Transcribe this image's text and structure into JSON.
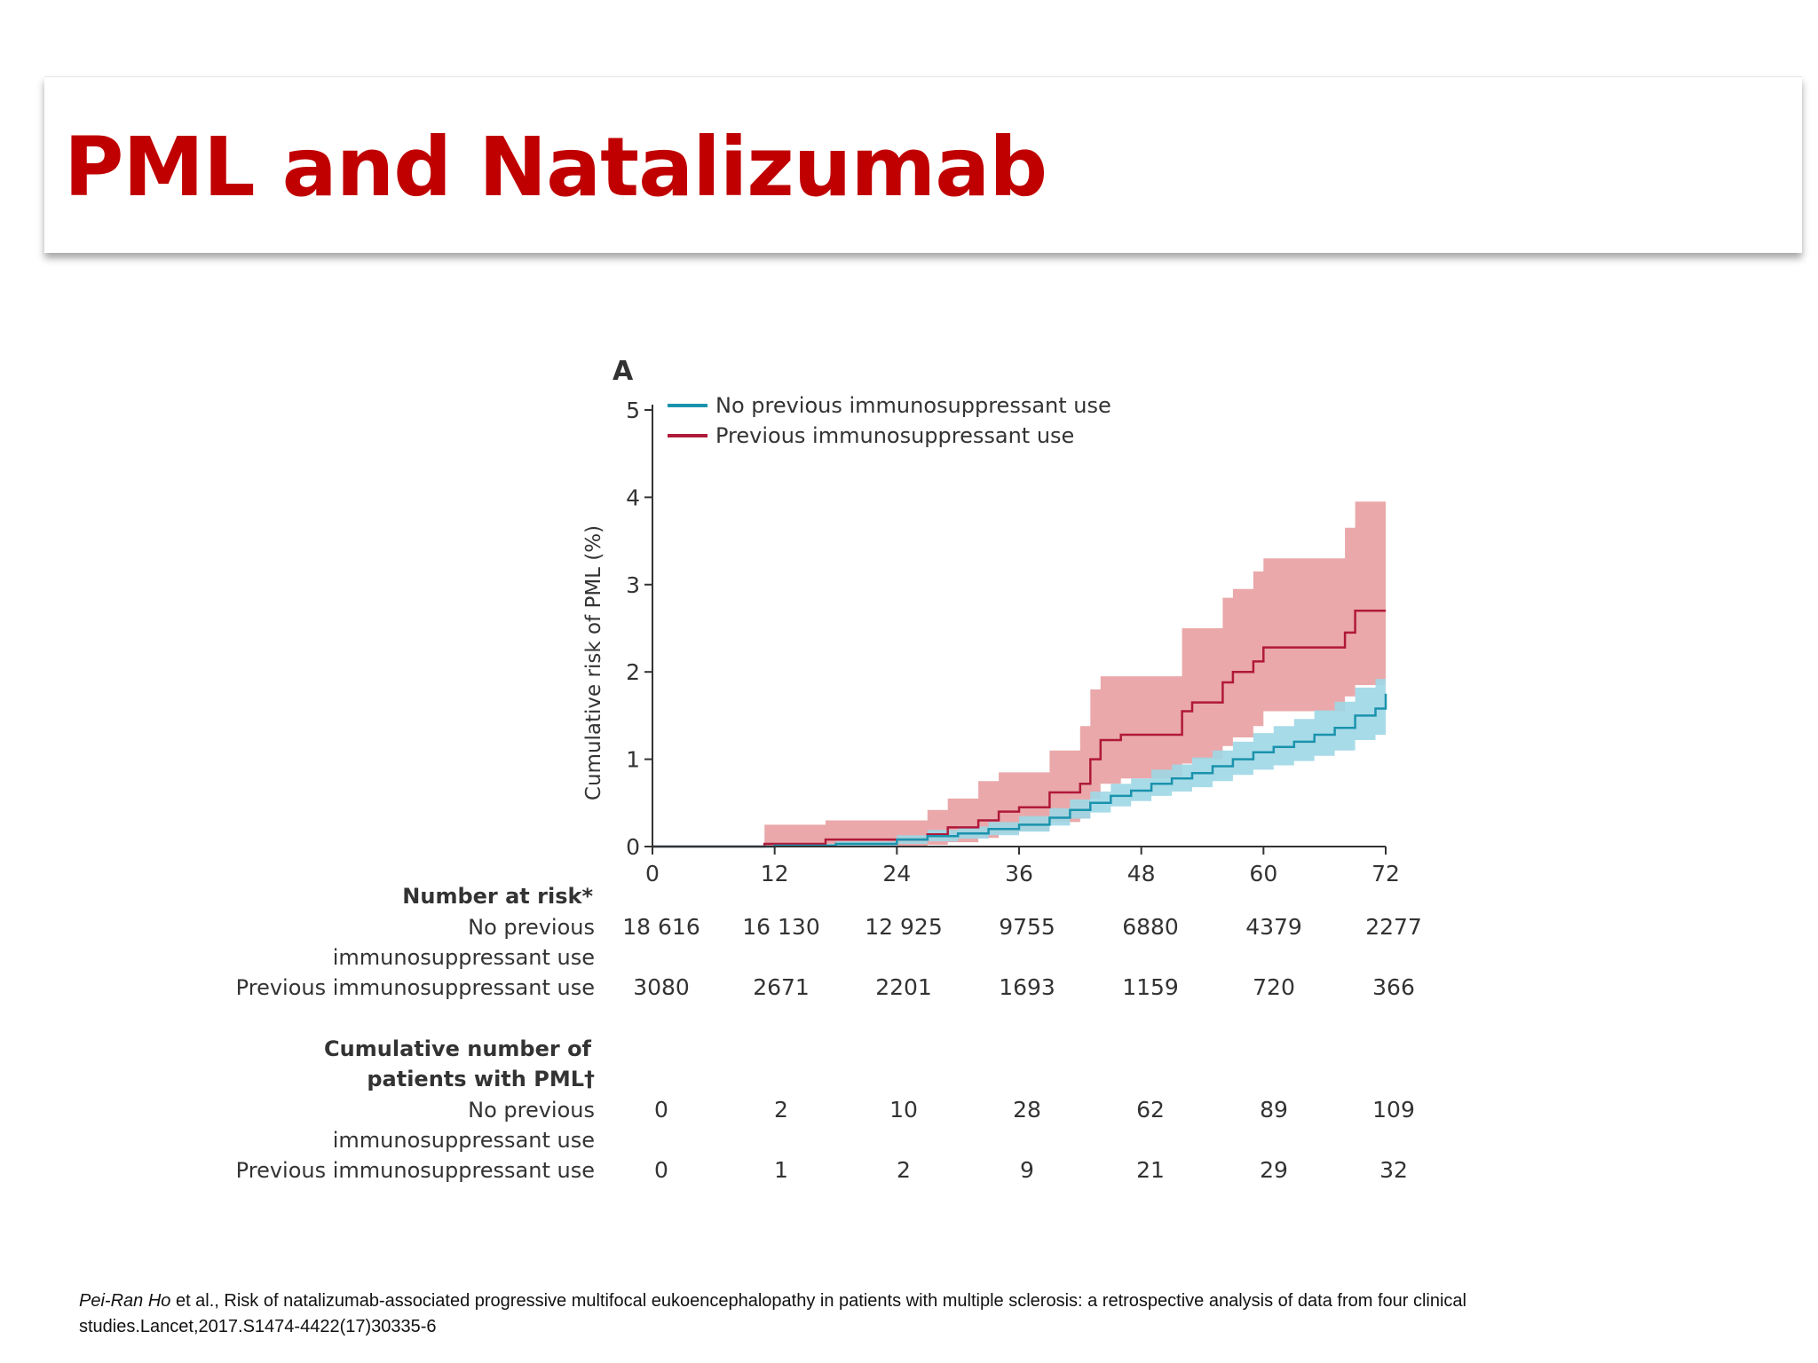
{
  "slide": {
    "title": "PML and Natalizumab",
    "citation_author": "Pei-Ran Ho",
    "citation_rest": " et al., Risk of natalizumab-associated progressive multifocal eukoencephalopathy in patients with multiple sclerosis: a retrospective analysis of data from four clinical studies.Lancet,2017.S1474-4422(17)30335-6"
  },
  "colors": {
    "title": "#c00000",
    "no_prev_line": "#1a93ad",
    "no_prev_band": "#9fd7e6",
    "prev_line": "#b0193a",
    "prev_band": "#e9a3a5"
  },
  "chart_data": {
    "type": "line",
    "panel_label": "A",
    "ylabel": "Cumulative risk of PML (%)",
    "xlabel": "",
    "x_ticks": [
      0,
      12,
      24,
      36,
      48,
      60,
      72
    ],
    "y_ticks": [
      0,
      1,
      2,
      3,
      4,
      5
    ],
    "xlim": [
      0,
      72
    ],
    "ylim": [
      0,
      5
    ],
    "legend_position": "top-left",
    "series": [
      {
        "name": "No previous immunosuppressant use",
        "color": "#1a93ad",
        "band_color": "#9fd7e6",
        "points": [
          [
            0,
            0
          ],
          [
            12,
            0.01
          ],
          [
            18,
            0.03
          ],
          [
            24,
            0.08
          ],
          [
            27,
            0.12
          ],
          [
            30,
            0.15
          ],
          [
            33,
            0.2
          ],
          [
            36,
            0.25
          ],
          [
            39,
            0.33
          ],
          [
            41,
            0.42
          ],
          [
            43,
            0.5
          ],
          [
            45,
            0.58
          ],
          [
            47,
            0.64
          ],
          [
            49,
            0.72
          ],
          [
            51,
            0.78
          ],
          [
            53,
            0.84
          ],
          [
            55,
            0.92
          ],
          [
            57,
            1.0
          ],
          [
            59,
            1.08
          ],
          [
            61,
            1.14
          ],
          [
            63,
            1.2
          ],
          [
            65,
            1.28
          ],
          [
            67,
            1.36
          ],
          [
            69,
            1.5
          ],
          [
            71,
            1.58
          ],
          [
            72,
            1.75
          ]
        ],
        "lower": [
          [
            0,
            0
          ],
          [
            12,
            0
          ],
          [
            18,
            0
          ],
          [
            24,
            0.03
          ],
          [
            27,
            0.06
          ],
          [
            30,
            0.09
          ],
          [
            33,
            0.13
          ],
          [
            36,
            0.17
          ],
          [
            39,
            0.24
          ],
          [
            41,
            0.32
          ],
          [
            43,
            0.39
          ],
          [
            45,
            0.46
          ],
          [
            47,
            0.52
          ],
          [
            49,
            0.58
          ],
          [
            51,
            0.63
          ],
          [
            53,
            0.68
          ],
          [
            55,
            0.75
          ],
          [
            57,
            0.82
          ],
          [
            59,
            0.88
          ],
          [
            61,
            0.93
          ],
          [
            63,
            0.98
          ],
          [
            65,
            1.04
          ],
          [
            67,
            1.1
          ],
          [
            69,
            1.22
          ],
          [
            71,
            1.28
          ],
          [
            72,
            1.42
          ]
        ],
        "upper": [
          [
            0,
            0.01
          ],
          [
            12,
            0.03
          ],
          [
            18,
            0.06
          ],
          [
            24,
            0.13
          ],
          [
            27,
            0.19
          ],
          [
            30,
            0.23
          ],
          [
            33,
            0.28
          ],
          [
            36,
            0.35
          ],
          [
            39,
            0.44
          ],
          [
            41,
            0.54
          ],
          [
            43,
            0.63
          ],
          [
            45,
            0.72
          ],
          [
            47,
            0.78
          ],
          [
            49,
            0.88
          ],
          [
            51,
            0.94
          ],
          [
            53,
            1.02
          ],
          [
            55,
            1.1
          ],
          [
            57,
            1.2
          ],
          [
            59,
            1.3
          ],
          [
            61,
            1.38
          ],
          [
            63,
            1.46
          ],
          [
            65,
            1.56
          ],
          [
            67,
            1.66
          ],
          [
            69,
            1.82
          ],
          [
            71,
            1.92
          ],
          [
            72,
            2.15
          ]
        ]
      },
      {
        "name": "Previous immunosuppressant use",
        "color": "#b0193a",
        "band_color": "#e9a3a5",
        "points": [
          [
            0,
            0
          ],
          [
            11,
            0.03
          ],
          [
            17,
            0.08
          ],
          [
            27,
            0.14
          ],
          [
            29,
            0.22
          ],
          [
            32,
            0.3
          ],
          [
            34,
            0.4
          ],
          [
            36,
            0.45
          ],
          [
            39,
            0.62
          ],
          [
            42,
            0.72
          ],
          [
            43,
            1.0
          ],
          [
            44,
            1.22
          ],
          [
            46,
            1.28
          ],
          [
            52,
            1.55
          ],
          [
            53,
            1.65
          ],
          [
            56,
            1.88
          ],
          [
            57,
            2.0
          ],
          [
            59,
            2.12
          ],
          [
            60,
            2.28
          ],
          [
            68,
            2.45
          ],
          [
            69,
            2.7
          ],
          [
            72,
            2.7
          ]
        ],
        "lower": [
          [
            0,
            0
          ],
          [
            11,
            0
          ],
          [
            17,
            0
          ],
          [
            27,
            0.02
          ],
          [
            29,
            0.05
          ],
          [
            32,
            0.1
          ],
          [
            34,
            0.15
          ],
          [
            36,
            0.18
          ],
          [
            39,
            0.28
          ],
          [
            42,
            0.32
          ],
          [
            43,
            0.55
          ],
          [
            44,
            0.72
          ],
          [
            46,
            0.78
          ],
          [
            52,
            0.95
          ],
          [
            53,
            1.0
          ],
          [
            56,
            1.15
          ],
          [
            57,
            1.25
          ],
          [
            59,
            1.38
          ],
          [
            60,
            1.55
          ],
          [
            68,
            1.72
          ],
          [
            69,
            1.85
          ],
          [
            72,
            1.9
          ]
        ],
        "upper": [
          [
            0,
            0.01
          ],
          [
            11,
            0.25
          ],
          [
            17,
            0.3
          ],
          [
            27,
            0.42
          ],
          [
            29,
            0.55
          ],
          [
            32,
            0.75
          ],
          [
            34,
            0.85
          ],
          [
            36,
            0.85
          ],
          [
            39,
            1.1
          ],
          [
            42,
            1.38
          ],
          [
            43,
            1.8
          ],
          [
            44,
            1.95
          ],
          [
            46,
            1.95
          ],
          [
            52,
            2.5
          ],
          [
            53,
            2.5
          ],
          [
            56,
            2.85
          ],
          [
            57,
            2.95
          ],
          [
            59,
            3.15
          ],
          [
            60,
            3.3
          ],
          [
            68,
            3.65
          ],
          [
            69,
            3.95
          ],
          [
            72,
            3.95
          ]
        ]
      }
    ],
    "risk_table": {
      "heading": "Number at risk*",
      "rows": [
        {
          "label_line1": "No previous",
          "label_line2": "immunosuppressant use",
          "values": [
            "18 616",
            "16 130",
            "12 925",
            "9755",
            "6880",
            "4379",
            "2277"
          ]
        },
        {
          "label_line1": "Previous immunosuppressant use",
          "label_line2": "",
          "values": [
            "3080",
            "2671",
            "2201",
            "1693",
            "1159",
            "720",
            "366"
          ]
        }
      ]
    },
    "pml_table": {
      "heading_line1": "Cumulative number of",
      "heading_line2": "patients with PML†",
      "rows": [
        {
          "label_line1": "No previous",
          "label_line2": "immunosuppressant use",
          "values": [
            "0",
            "2",
            "10",
            "28",
            "62",
            "89",
            "109"
          ]
        },
        {
          "label_line1": "Previous immunosuppressant use",
          "label_line2": "",
          "values": [
            "0",
            "1",
            "2",
            "9",
            "21",
            "29",
            "32"
          ]
        }
      ]
    }
  }
}
